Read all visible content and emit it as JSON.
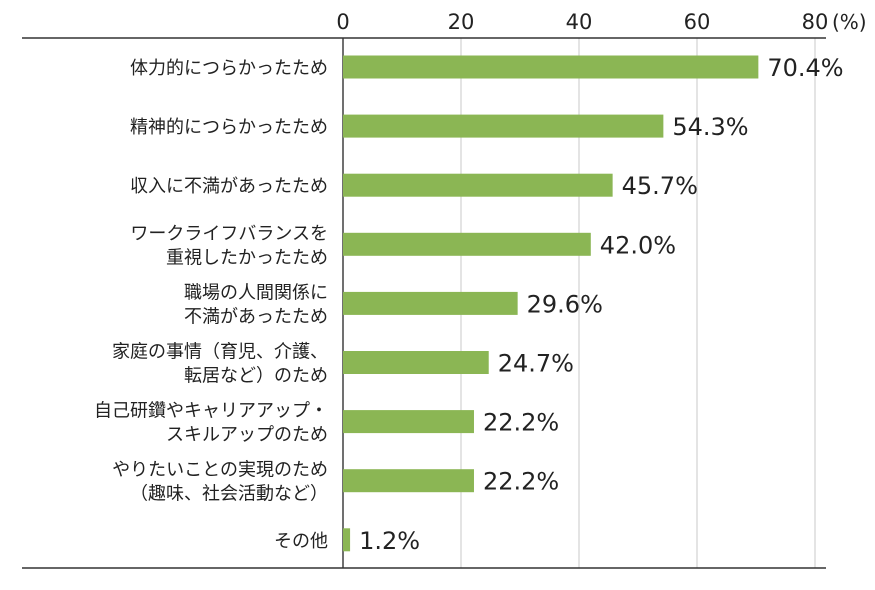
{
  "chart_data": {
    "type": "bar",
    "orientation": "horizontal",
    "title": "",
    "xlabel": "",
    "ylabel": "",
    "unit_label": "(%)",
    "xlim": [
      0,
      80
    ],
    "x_ticks": [
      0,
      20,
      40,
      60,
      80
    ],
    "grid": true,
    "color": "#8BB654",
    "value_suffix": "%",
    "categories": [
      [
        "体力的につらかったため"
      ],
      [
        "精神的につらかったため"
      ],
      [
        "収入に不満があったため"
      ],
      [
        "ワークライフバランスを",
        "重視したかったため"
      ],
      [
        "職場の人間関係に",
        "不満があったため"
      ],
      [
        "家庭の事情（育児、介護、",
        "転居など）のため"
      ],
      [
        "自己研鑽やキャリアアップ・",
        "スキルアップのため"
      ],
      [
        "やりたいことの実現のため",
        "（趣味、社会活動など）"
      ],
      [
        "その他"
      ]
    ],
    "values": [
      70.4,
      54.3,
      45.7,
      42.0,
      29.6,
      24.7,
      22.2,
      22.2,
      1.2
    ]
  }
}
